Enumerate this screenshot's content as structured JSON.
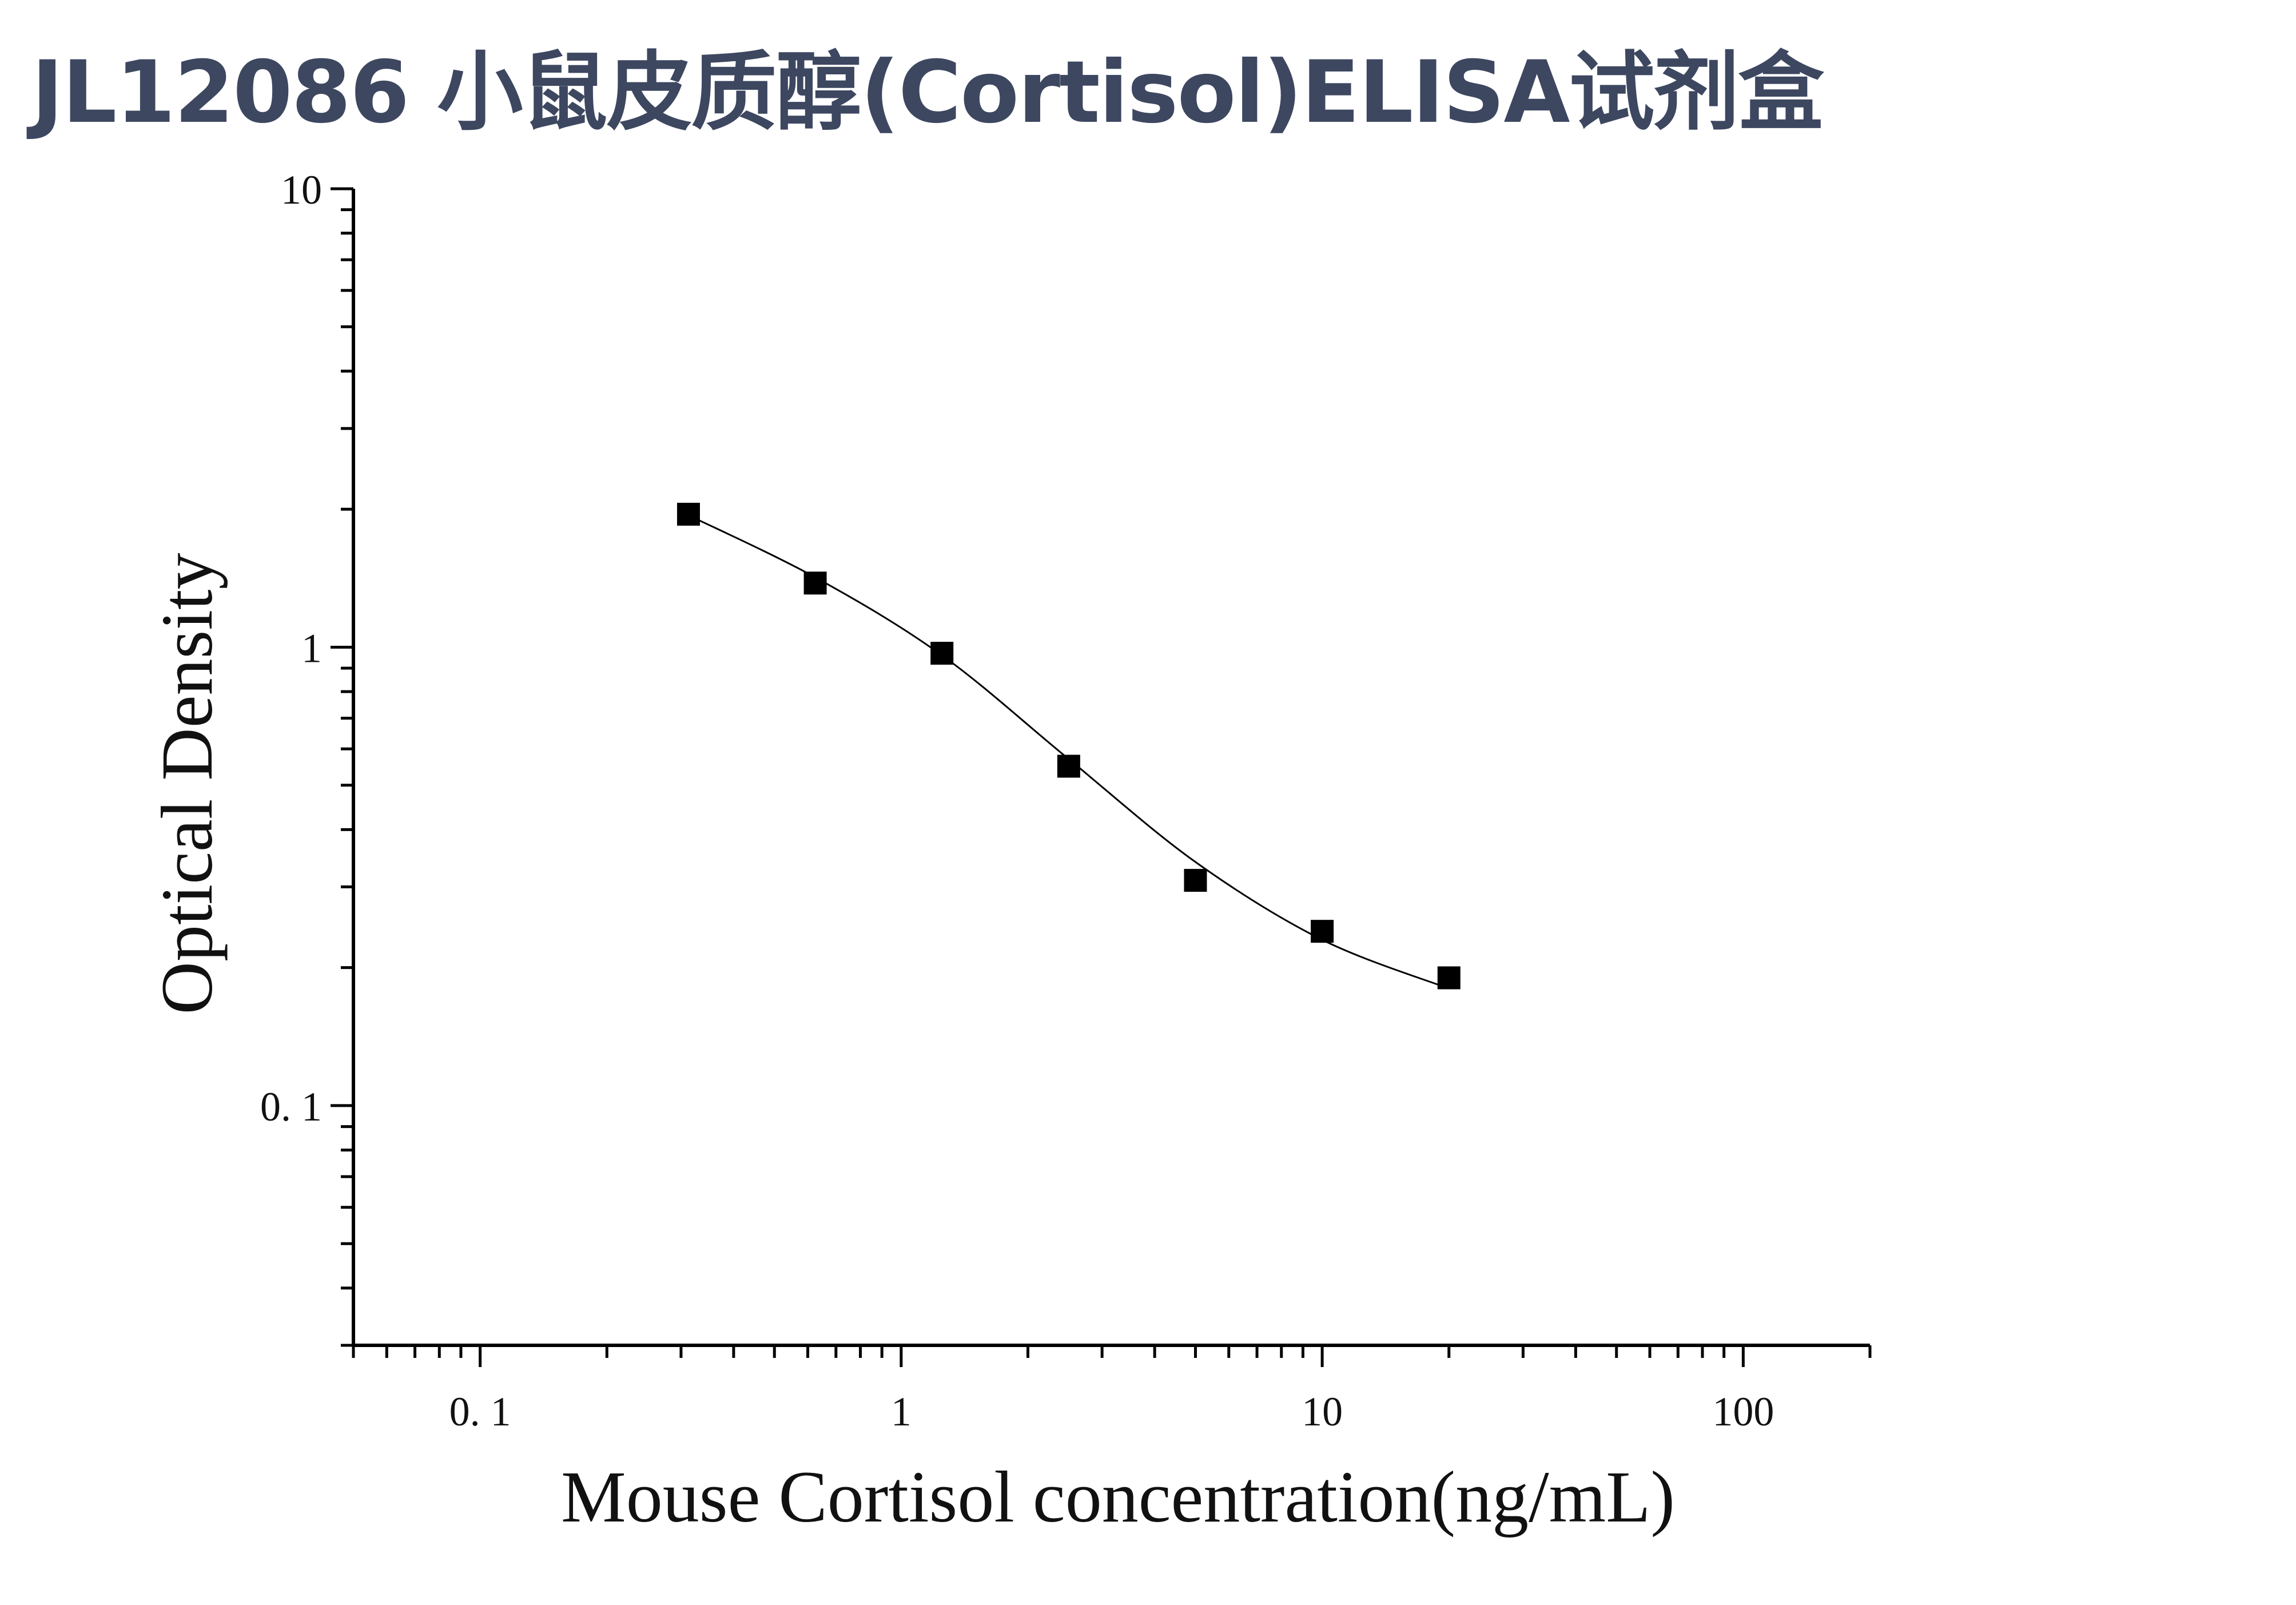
{
  "title": "JL12086 小鼠皮质醇(Cortisol)ELISA试剂盒",
  "chart_data": {
    "type": "scatter",
    "title": "JL12086 小鼠皮质醇(Cortisol)ELISA试剂盒",
    "xlabel": "Mouse Cortisol concentration(ng/mL)",
    "ylabel": "Optical Density",
    "xscale": "log",
    "yscale": "log",
    "xlim": [
      0.05,
      200
    ],
    "ylim": [
      0.03,
      10
    ],
    "x_ticks": [
      {
        "value": 0.1,
        "label": "0. 1"
      },
      {
        "value": 1,
        "label": "1"
      },
      {
        "value": 10,
        "label": "10"
      },
      {
        "value": 100,
        "label": "100"
      }
    ],
    "y_ticks": [
      {
        "value": 0.1,
        "label": "0. 1"
      },
      {
        "value": 1,
        "label": "1"
      },
      {
        "value": 10,
        "label": "10"
      }
    ],
    "grid": false,
    "series": [
      {
        "marker": "square",
        "color": "#000000",
        "x": [
          0.3125,
          0.625,
          1.25,
          2.5,
          5,
          10,
          20
        ],
        "y": [
          1.95,
          1.38,
          0.97,
          0.55,
          0.31,
          0.24,
          0.19
        ]
      }
    ],
    "fit_curve": {
      "color": "#000000",
      "x": [
        0.3125,
        0.625,
        1.25,
        2.5,
        5,
        10,
        20
      ],
      "y": [
        1.94,
        1.42,
        0.96,
        0.57,
        0.34,
        0.23,
        0.18
      ]
    }
  }
}
